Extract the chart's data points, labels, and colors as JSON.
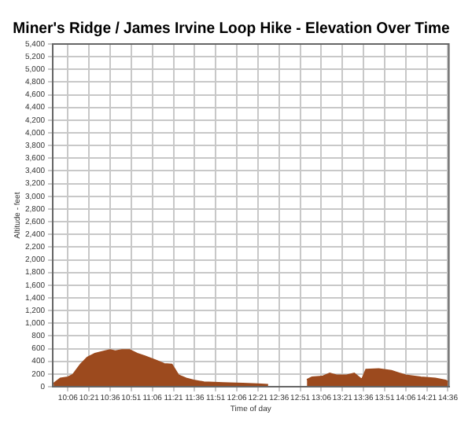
{
  "chart_data": {
    "type": "area",
    "title": "Miner's Ridge / James Irvine Loop Hike - Elevation Over Time",
    "xlabel": "Time of day",
    "ylabel": "Altitude - feet",
    "x": [
      9.93,
      10.01,
      10.1,
      10.16,
      10.25,
      10.33,
      10.42,
      10.54,
      10.6,
      10.66,
      10.74,
      10.83,
      10.92,
      11.01,
      11.09,
      11.15,
      11.24,
      11.33,
      11.41,
      11.5,
      11.59,
      11.71,
      11.94,
      12.17,
      12.35,
      12.47,
      12.7,
      12.93,
      12.99,
      13.11,
      13.2,
      13.28,
      13.4,
      13.49,
      13.58,
      13.63,
      13.78,
      13.93,
      14.1,
      14.28,
      14.45,
      14.57,
      14.6
    ],
    "series": [
      {
        "color": "#9c4a1e",
        "values": [
          50,
          130,
          150,
          190,
          350,
          460,
          520,
          560,
          580,
          560,
          580,
          580,
          520,
          480,
          440,
          410,
          360,
          350,
          180,
          130,
          100,
          70,
          60,
          50,
          40,
          30,
          null,
          110,
          150,
          160,
          210,
          180,
          180,
          210,
          110,
          270,
          280,
          250,
          180,
          150,
          130,
          100,
          80
        ]
      }
    ],
    "xlim": [
      9.92,
      14.61
    ],
    "xticks": [
      {
        "value": 10.1,
        "label": "10:06"
      },
      {
        "value": 10.35,
        "label": "10:21"
      },
      {
        "value": 10.6,
        "label": "10:36"
      },
      {
        "value": 10.85,
        "label": "10:51"
      },
      {
        "value": 11.1,
        "label": "11:06"
      },
      {
        "value": 11.35,
        "label": "11:21"
      },
      {
        "value": 11.6,
        "label": "11:36"
      },
      {
        "value": 11.85,
        "label": "11:51"
      },
      {
        "value": 12.1,
        "label": "12:06"
      },
      {
        "value": 12.35,
        "label": "12:21"
      },
      {
        "value": 12.6,
        "label": "12:36"
      },
      {
        "value": 12.85,
        "label": "12:51"
      },
      {
        "value": 13.1,
        "label": "13:06"
      },
      {
        "value": 13.35,
        "label": "13:21"
      },
      {
        "value": 13.6,
        "label": "13:36"
      },
      {
        "value": 13.85,
        "label": "13:51"
      },
      {
        "value": 14.1,
        "label": "14:06"
      },
      {
        "value": 14.35,
        "label": "14:21"
      },
      {
        "value": 14.6,
        "label": "14:36"
      }
    ],
    "ylim": [
      0,
      5400
    ],
    "yticks": [
      0,
      {
        "value": 200,
        "label": "200"
      },
      {
        "value": 400,
        "label": "400"
      },
      {
        "value": 600,
        "label": "600"
      },
      {
        "value": 800,
        "label": "800"
      },
      {
        "value": 1000,
        "label": "1,000"
      },
      {
        "value": 1200,
        "label": "1,200"
      },
      {
        "value": 1400,
        "label": "1,400"
      },
      {
        "value": 1600,
        "label": "1,600"
      },
      {
        "value": 1800,
        "label": "1,800"
      },
      {
        "value": 2000,
        "label": "2,000"
      },
      {
        "value": 2200,
        "label": "2,200"
      },
      {
        "value": 2400,
        "label": "2,400"
      },
      {
        "value": 2600,
        "label": "2,600"
      },
      {
        "value": 2800,
        "label": "2,800"
      },
      {
        "value": 3000,
        "label": "3,000"
      },
      {
        "value": 3200,
        "label": "3,200"
      },
      {
        "value": 3400,
        "label": "3,400"
      },
      {
        "value": 3600,
        "label": "3,600"
      },
      {
        "value": 3800,
        "label": "3,800"
      },
      {
        "value": 4000,
        "label": "4,000"
      },
      {
        "value": 4200,
        "label": "4,200"
      },
      {
        "value": 4400,
        "label": "4,400"
      },
      {
        "value": 4600,
        "label": "4,600"
      },
      {
        "value": 4800,
        "label": "4,800"
      },
      {
        "value": 5000,
        "label": "5,000"
      },
      {
        "value": 5200,
        "label": "5,200"
      },
      {
        "value": 5400,
        "label": "5,400"
      }
    ],
    "grid": true,
    "legend": false
  }
}
